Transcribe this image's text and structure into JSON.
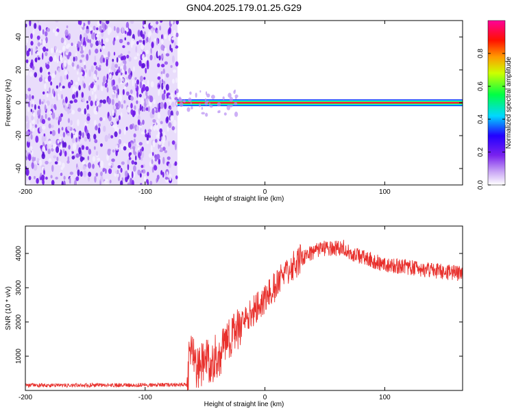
{
  "title": "GN04.2025.179.01.25.G29",
  "colors": {
    "snr_line": "#e8302c",
    "scatter_purple": "#7a22ee",
    "background": "#ffffff"
  },
  "chart_data": [
    {
      "type": "heatmap",
      "title": "GN04.2025.179.01.25.G29",
      "xlabel": "Height of straight line (km)",
      "ylabel": "Frequency (Hz)",
      "xlim": [
        -200,
        165
      ],
      "ylim": [
        -50,
        50
      ],
      "x_ticks": [
        -200,
        -100,
        0,
        100
      ],
      "x_tick_labels": [
        "-200",
        "-100",
        "0",
        "100"
      ],
      "y_ticks": [
        -40,
        -20,
        0,
        20,
        40
      ],
      "y_tick_labels": [
        "-40",
        "-20",
        "0",
        "20",
        "40"
      ],
      "noise_region_x": [
        -200,
        -73
      ],
      "signal_band_frequency_hz": 0,
      "signal_band_x": [
        -73,
        165
      ],
      "colorbar": {
        "label": "Normalized spectral amplitude",
        "range": [
          0,
          1
        ],
        "ticks": [
          0.0,
          0.2,
          0.4,
          0.6,
          0.8
        ],
        "tick_labels": [
          "0.0",
          "0.2",
          "0.4",
          "0.6",
          "0.8"
        ],
        "colormap": [
          "#ffffff",
          "#8a2be2",
          "#0000ff",
          "#00ffff",
          "#00ff00",
          "#ffff00",
          "#ff0000",
          "#ff00aa"
        ]
      }
    },
    {
      "type": "line",
      "xlabel": "Height of straight line (km)",
      "ylabel": "SNR (10 * v/v)",
      "xlim": [
        -200,
        165
      ],
      "ylim": [
        0,
        4800
      ],
      "x_ticks": [
        -200,
        -100,
        0,
        100
      ],
      "x_tick_labels": [
        "-200",
        "-100",
        "0",
        "100"
      ],
      "y_ticks": [
        1000,
        2000,
        3000,
        4000
      ],
      "y_tick_labels": [
        "1000",
        "2000",
        "3000",
        "4000"
      ],
      "series": [
        {
          "x": [
            -200,
            -150,
            -100,
            -65,
            -62,
            -58,
            -55,
            -50,
            -45,
            -40,
            -35,
            -30,
            -25,
            -20,
            -15,
            -10,
            -5,
            0,
            10,
            20,
            30,
            40,
            50,
            60,
            65,
            70,
            80,
            90,
            100,
            120,
            140,
            165
          ],
          "y": [
            150,
            150,
            160,
            170,
            1200,
            700,
            600,
            800,
            900,
            1000,
            1200,
            1400,
            1700,
            1900,
            2100,
            2300,
            2500,
            2700,
            3100,
            3500,
            3850,
            4050,
            4150,
            4150,
            4200,
            4050,
            3900,
            3800,
            3650,
            3600,
            3500,
            3400
          ]
        }
      ]
    }
  ]
}
